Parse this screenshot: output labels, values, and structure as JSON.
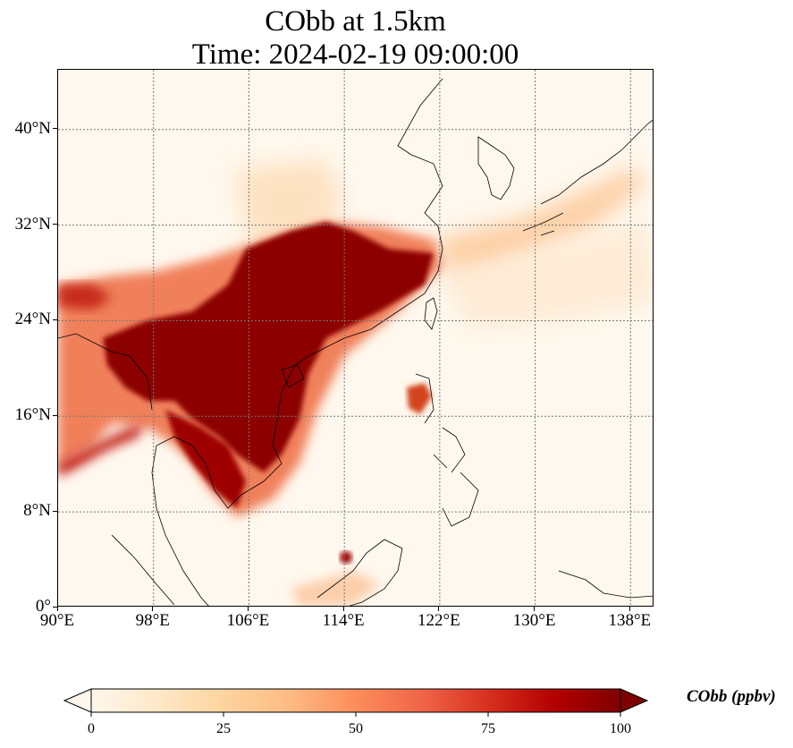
{
  "title": {
    "line1": "CObb at 1.5km",
    "line2": "Time: 2024-02-19 09:00:00"
  },
  "map": {
    "extent": {
      "lon_min": 90,
      "lon_max": 140,
      "lat_min": 0,
      "lat_max": 45
    },
    "gridlines": true,
    "lat_ticks": [
      {
        "value": 0,
        "label": "0°"
      },
      {
        "value": 8,
        "label": "8°N"
      },
      {
        "value": 16,
        "label": "16°N"
      },
      {
        "value": 24,
        "label": "24°N"
      },
      {
        "value": 32,
        "label": "32°N"
      },
      {
        "value": 40,
        "label": "40°N"
      }
    ],
    "lon_ticks": [
      {
        "value": 90,
        "label": "90°E"
      },
      {
        "value": 98,
        "label": "98°E"
      },
      {
        "value": 106,
        "label": "106°E"
      },
      {
        "value": 114,
        "label": "114°E"
      },
      {
        "value": 122,
        "label": "122°E"
      },
      {
        "value": 130,
        "label": "130°E"
      },
      {
        "value": 138,
        "label": "138°E"
      }
    ]
  },
  "colorbar": {
    "label": "CObb (ppbv)",
    "min": 0,
    "max": 100,
    "extend": "both",
    "colormap": "OrRd",
    "ticks": [
      {
        "value": 0,
        "label": "0"
      },
      {
        "value": 25,
        "label": "25"
      },
      {
        "value": 50,
        "label": "50"
      },
      {
        "value": 75,
        "label": "75"
      },
      {
        "value": 100,
        "label": "100"
      }
    ],
    "colors": [
      "#fff7ec",
      "#fee8c8",
      "#fdd49e",
      "#fdbb84",
      "#fc8d59",
      "#ef6548",
      "#d7301f",
      "#b30000",
      "#7f0000"
    ]
  }
}
